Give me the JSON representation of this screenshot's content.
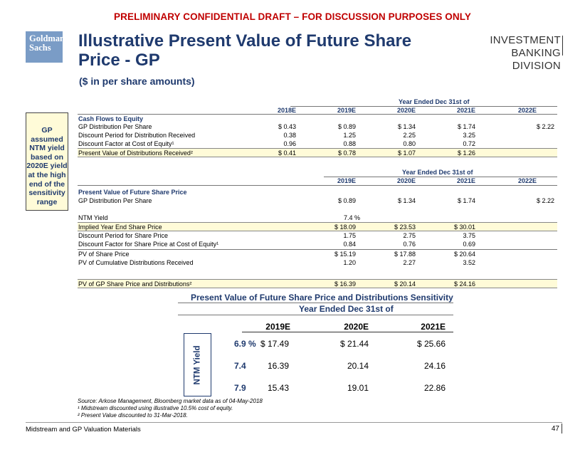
{
  "banner": "PRELIMINARY CONFIDENTIAL DRAFT – FOR DISCUSSION PURPOSES ONLY",
  "logo": {
    "line1": "Goldman",
    "line2": "Sachs"
  },
  "title": "Illustrative Present Value of Future Share Price - GP",
  "subtitle": "($ in per share amounts)",
  "division": {
    "line1": "INVESTMENT BANKING",
    "line2": "DIVISION"
  },
  "note": "GP assumed NTM yield based on 2020E yield at the high end of the sensitivity range",
  "table1": {
    "group_header": "Year Ended Dec 31st of",
    "years": [
      "2018E",
      "2019E",
      "2020E",
      "2021E",
      "2022E"
    ],
    "section": "Cash Flows to Equity",
    "rows": [
      {
        "label": "GP Distribution Per Share",
        "values": [
          "$ 0.43",
          "$ 0.89",
          "$ 1.34",
          "$ 1.74",
          "$ 2.22"
        ]
      },
      {
        "label": "Discount Period for Distribution Received",
        "values": [
          "0.38",
          "1.25",
          "2.25",
          "3.25",
          ""
        ]
      },
      {
        "label": "Discount Factor at  Cost of Equity¹",
        "values": [
          "0.96",
          "0.88",
          "0.80",
          "0.72",
          ""
        ]
      },
      {
        "label": "Present Value of Distributions Received²",
        "values": [
          "$ 0.41",
          "$ 0.78",
          "$ 1.07",
          "$ 1.26",
          ""
        ],
        "highlight": true
      }
    ]
  },
  "table2": {
    "group_header": "Year Ended Dec 31st of",
    "years": [
      "2019E",
      "2020E",
      "2021E",
      "2022E"
    ],
    "section": "Present Value of Future Share Price",
    "rows": [
      {
        "label": "GP Distribution Per Share",
        "values": [
          "$ 0.89",
          "$ 1.34",
          "$ 1.74",
          "$ 2.22"
        ]
      },
      {
        "label": "NTM Yield",
        "values": [
          "7.4 %",
          "",
          "",
          ""
        ]
      },
      {
        "label": "Implied Year End Share Price",
        "values": [
          "$ 18.09",
          "$ 23.53",
          "$ 30.01",
          ""
        ],
        "highlight": true
      },
      {
        "label": "Discount Period for Share Price",
        "values": [
          "1.75",
          "2.75",
          "3.75",
          ""
        ]
      },
      {
        "label": "Discount Factor for Share Price at  Cost of Equity¹",
        "values": [
          "0.84",
          "0.76",
          "0.69",
          ""
        ]
      },
      {
        "label": "PV of Share Price",
        "values": [
          "$ 15.19",
          "$ 17.88",
          "$ 20.64",
          ""
        ]
      },
      {
        "label": "PV of Cumulative Distributions Received",
        "values": [
          "1.20",
          "2.27",
          "3.52",
          ""
        ]
      },
      {
        "label": "PV of GP Share Price and Distributions²",
        "values": [
          "$ 16.39",
          "$ 20.14",
          "$ 24.16",
          ""
        ],
        "highlight": true
      }
    ]
  },
  "sensitivity": {
    "title": "Present Value of Future Share Price and Distributions Sensitivity",
    "group_header": "Year Ended Dec 31st of",
    "axis_label": "NTM Yield",
    "years": [
      "2019E",
      "2020E",
      "2021E"
    ],
    "rows": [
      {
        "yield": "6.9 %",
        "values": [
          "$ 17.49",
          "$ 21.44",
          "$ 25.66"
        ]
      },
      {
        "yield": "7.4",
        "values": [
          "16.39",
          "20.14",
          "24.16"
        ]
      },
      {
        "yield": "7.9",
        "values": [
          "15.43",
          "19.01",
          "22.86"
        ]
      }
    ]
  },
  "source": {
    "line1": "Source: Arkose Management, Bloomberg market data as of 04-May-2018",
    "line2": "¹ Midstream discounted using illustrative 10.5% cost of equity.",
    "line3": "² Present Value discounted to 31-Mar-2018."
  },
  "footer": "Midstream and GP Valuation Materials",
  "page_number": "47"
}
